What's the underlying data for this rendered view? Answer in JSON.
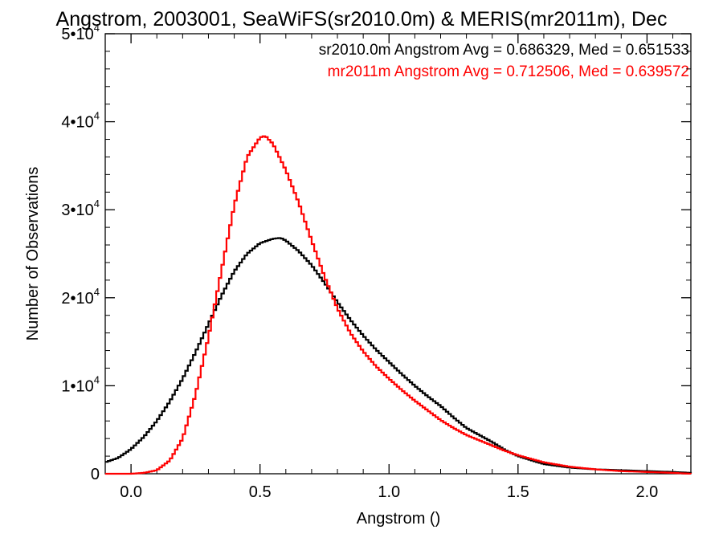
{
  "chart_data": {
    "type": "line",
    "title": "Angstrom, 2003001, SeaWiFS(sr2010.0m) & MERIS(mr2011m), Dec",
    "xlabel": "Angstrom ()",
    "ylabel": "Number of Observations",
    "xlim": [
      -0.1,
      2.17
    ],
    "ylim": [
      0,
      50000
    ],
    "x_ticks": [
      0.0,
      0.5,
      1.0,
      1.5,
      2.0
    ],
    "x_tick_labels": [
      "0.0",
      "0.5",
      "1.0",
      "1.5",
      "2.0"
    ],
    "y_ticks": [
      0,
      10000,
      20000,
      30000,
      40000,
      50000
    ],
    "y_tick_labels": [
      {
        "base": "0",
        "exp": ""
      },
      {
        "base": "1•10",
        "exp": "4"
      },
      {
        "base": "2•10",
        "exp": "4"
      },
      {
        "base": "3•10",
        "exp": "4"
      },
      {
        "base": "4•10",
        "exp": "4"
      },
      {
        "base": "5•10",
        "exp": "4"
      }
    ],
    "grid": false,
    "step_plot": true,
    "annotations": [
      {
        "text": "sr2010.0m Angstrom Avg = 0.686329, Med = 0.651533",
        "color": "#000000"
      },
      {
        "text": "mr2011m Angstrom Avg = 0.712506, Med = 0.639572",
        "color": "#ff0000"
      }
    ],
    "series": [
      {
        "color": "#000000",
        "x": [
          -0.1,
          -0.05,
          0.0,
          0.05,
          0.1,
          0.15,
          0.2,
          0.25,
          0.3,
          0.35,
          0.4,
          0.45,
          0.5,
          0.55,
          0.58,
          0.6,
          0.65,
          0.7,
          0.75,
          0.8,
          0.85,
          0.9,
          0.95,
          1.0,
          1.05,
          1.1,
          1.15,
          1.2,
          1.25,
          1.3,
          1.35,
          1.4,
          1.45,
          1.5,
          1.6,
          1.7,
          1.8,
          1.9,
          2.0,
          2.1,
          2.17
        ],
        "y": [
          1300,
          1800,
          2800,
          4200,
          6000,
          8200,
          10800,
          13800,
          17000,
          20200,
          23000,
          25000,
          26200,
          26700,
          26800,
          26500,
          25300,
          23700,
          21700,
          19500,
          17500,
          15700,
          14100,
          12700,
          11300,
          10000,
          8800,
          7700,
          6400,
          5200,
          4400,
          3600,
          2700,
          2000,
          1100,
          700,
          500,
          400,
          300,
          200,
          100
        ]
      },
      {
        "color": "#ff0000",
        "x": [
          -0.1,
          -0.05,
          0.0,
          0.05,
          0.1,
          0.15,
          0.2,
          0.25,
          0.3,
          0.35,
          0.4,
          0.45,
          0.5,
          0.52,
          0.55,
          0.6,
          0.65,
          0.7,
          0.75,
          0.8,
          0.85,
          0.9,
          0.95,
          1.0,
          1.05,
          1.1,
          1.15,
          1.2,
          1.25,
          1.3,
          1.35,
          1.4,
          1.45,
          1.5,
          1.6,
          1.7,
          1.8,
          1.9,
          2.0,
          2.1,
          2.17
        ],
        "y": [
          0,
          0,
          0,
          100,
          400,
          1500,
          4000,
          9000,
          15500,
          23000,
          30500,
          36000,
          38200,
          38400,
          37500,
          34500,
          30800,
          26500,
          22400,
          18800,
          16000,
          13900,
          12200,
          10800,
          9500,
          8300,
          7200,
          6100,
          5200,
          4400,
          3800,
          3200,
          2600,
          2100,
          1300,
          800,
          500,
          300,
          200,
          100,
          0
        ]
      }
    ]
  }
}
